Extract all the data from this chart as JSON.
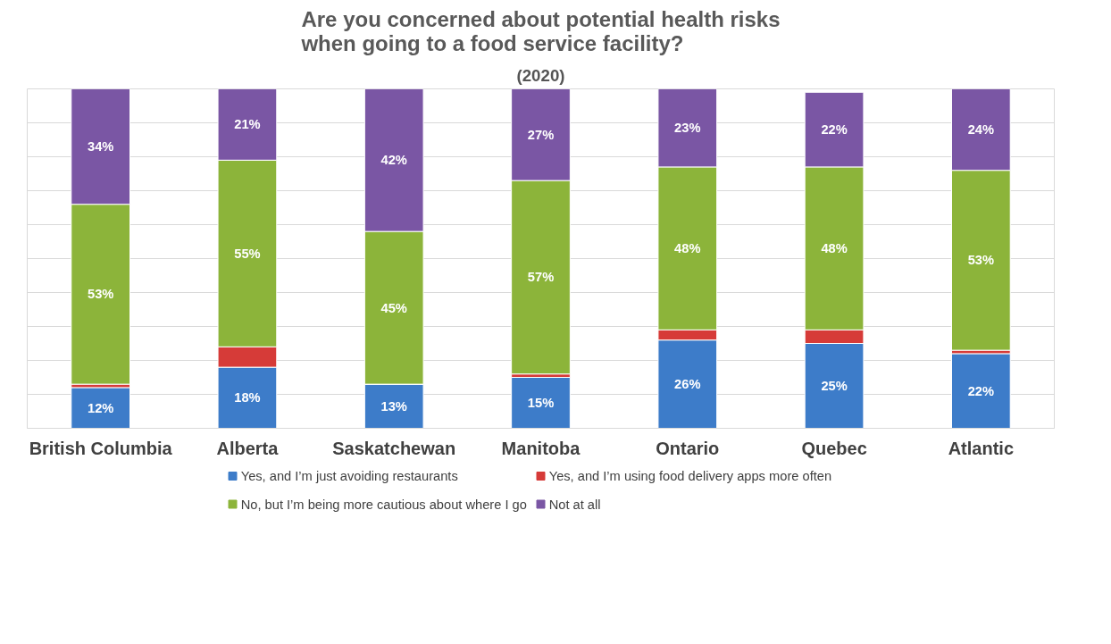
{
  "chart_data": {
    "type": "bar",
    "stacked": true,
    "title": "Are you concerned about potential health risks when going to a food service facility?",
    "subtitle": "(2020)",
    "categories": [
      "British Columbia",
      "Alberta",
      "Saskatchewan",
      "Manitoba",
      "Ontario",
      "Quebec",
      "Atlantic"
    ],
    "series": [
      {
        "name": "Yes, and I’m just avoiding restaurants",
        "color": "#3d7cc9",
        "values": [
          12,
          18,
          13,
          15,
          26,
          25,
          22
        ],
        "value_labels": [
          "12%",
          "18%",
          "13%",
          "15%",
          "26%",
          "25%",
          "22%"
        ]
      },
      {
        "name": "Yes, and I’m using food delivery apps more often",
        "color": "#d63b38",
        "values": [
          1,
          6,
          0,
          1,
          3,
          4,
          1
        ],
        "value_labels": [
          null,
          null,
          null,
          null,
          null,
          null,
          null
        ]
      },
      {
        "name": "No, but I’m being more cautious about where I go",
        "color": "#8cb43a",
        "values": [
          53,
          55,
          45,
          57,
          48,
          48,
          53
        ],
        "value_labels": [
          "53%",
          "55%",
          "45%",
          "57%",
          "48%",
          "48%",
          "53%"
        ]
      },
      {
        "name": "Not at all",
        "color": "#7a56a4",
        "values": [
          34,
          21,
          42,
          27,
          23,
          22,
          24
        ],
        "value_labels": [
          "34%",
          "21%",
          "42%",
          "27%",
          "23%",
          "22%",
          "24%"
        ]
      }
    ],
    "ylim": [
      0,
      100
    ],
    "yticks": [
      {
        "value": 0,
        "label": null
      },
      {
        "value": 10,
        "label": null
      },
      {
        "value": 20,
        "label": null
      },
      {
        "value": 30,
        "label": null
      },
      {
        "value": 40,
        "label": null
      },
      {
        "value": 50,
        "label": null
      },
      {
        "value": 60,
        "label": null
      },
      {
        "value": 70,
        "label": null
      },
      {
        "value": 80,
        "label": null
      },
      {
        "value": 90,
        "label": null
      },
      {
        "value": 100,
        "label": null
      }
    ],
    "grid": "y",
    "legend": "bottom",
    "tick_labels": "x"
  }
}
